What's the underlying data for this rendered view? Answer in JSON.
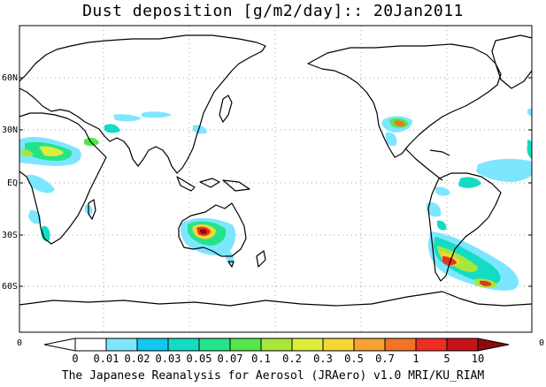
{
  "title": "Dust deposition [g/m2/day]:: 20Jan2011",
  "lat_labels": [
    "60N",
    "30N",
    "EQ",
    "30S",
    "60S"
  ],
  "lon_edge_labels": [
    "0",
    "0"
  ],
  "colorbar": {
    "labels": [
      "0",
      "0.01",
      "0.02",
      "0.03",
      "0.05",
      "0.07",
      "0.1",
      "0.2",
      "0.3",
      "0.5",
      "0.7",
      "1",
      "5",
      "10"
    ],
    "colors": [
      "#ffffff",
      "#ffffff",
      "#7de6ff",
      "#12c8f0",
      "#14dcc3",
      "#23e48a",
      "#55e64a",
      "#a8e63c",
      "#dcec3c",
      "#f2d737",
      "#f7a134",
      "#f27327",
      "#ee2e22",
      "#c4141a",
      "#8c0a0c"
    ]
  },
  "credit": "The Japanese Reanalysis for Aerosol (JRAero) v1.0 MRI/KU_RIAM"
}
